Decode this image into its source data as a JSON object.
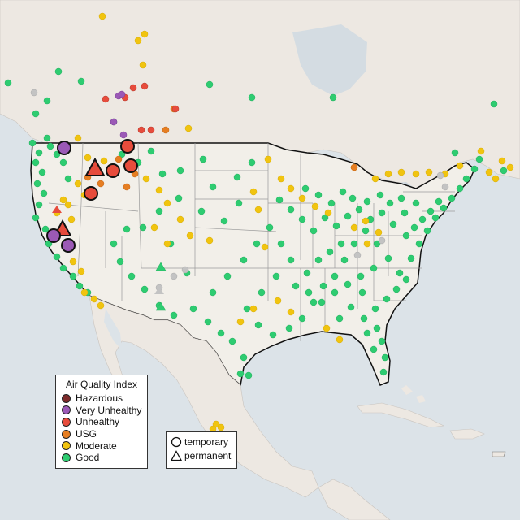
{
  "legend": {
    "title": "Air Quality Index",
    "items": [
      {
        "label": "Hazardous",
        "color": "#7e2b2b"
      },
      {
        "label": "Very Unhealthy",
        "color": "#9b59b6"
      },
      {
        "label": "Unhealthy",
        "color": "#e74c3c"
      },
      {
        "label": "USG",
        "color": "#e67e22"
      },
      {
        "label": "Moderate",
        "color": "#f1c40f"
      },
      {
        "label": "Good",
        "color": "#2ecc71"
      }
    ]
  },
  "monitor_types": [
    {
      "label": "temporary",
      "shape": "circle-icon"
    },
    {
      "label": "permanent",
      "shape": "triangle-icon"
    }
  ]
}
